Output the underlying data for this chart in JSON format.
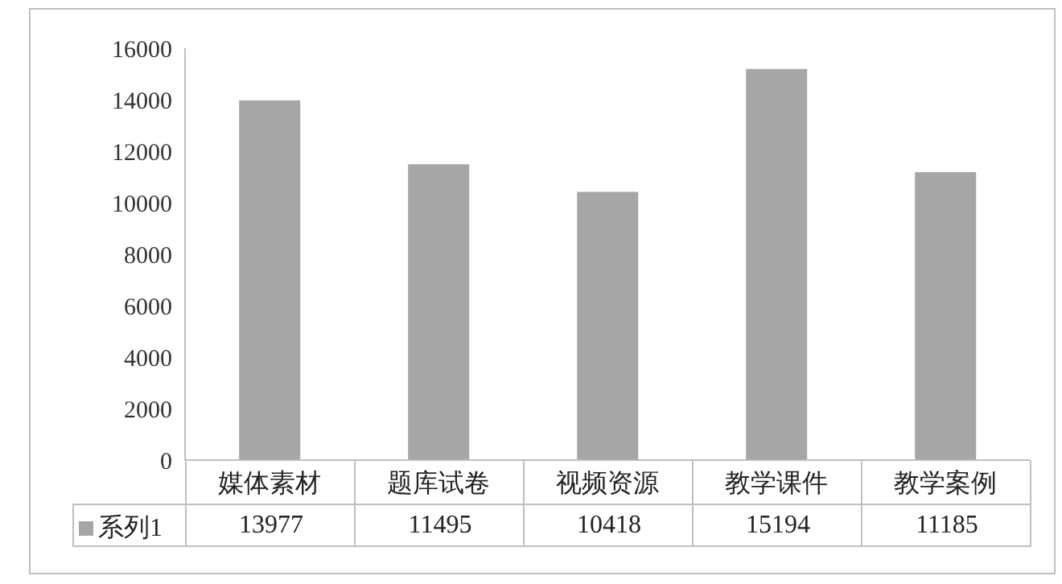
{
  "chart_data": {
    "type": "bar",
    "categories": [
      "媒体素材",
      "题库试卷",
      "视频资源",
      "教学课件",
      "教学案例"
    ],
    "series": [
      {
        "name": "系列1",
        "color": "#a6a6a6",
        "values": [
          13977,
          11495,
          10418,
          15194,
          11185
        ]
      }
    ],
    "ylim": [
      0,
      16000
    ],
    "yticks": [
      0,
      2000,
      4000,
      6000,
      8000,
      10000,
      12000,
      14000,
      16000
    ],
    "grid": false,
    "legend": "bottom",
    "data_labels": true
  }
}
